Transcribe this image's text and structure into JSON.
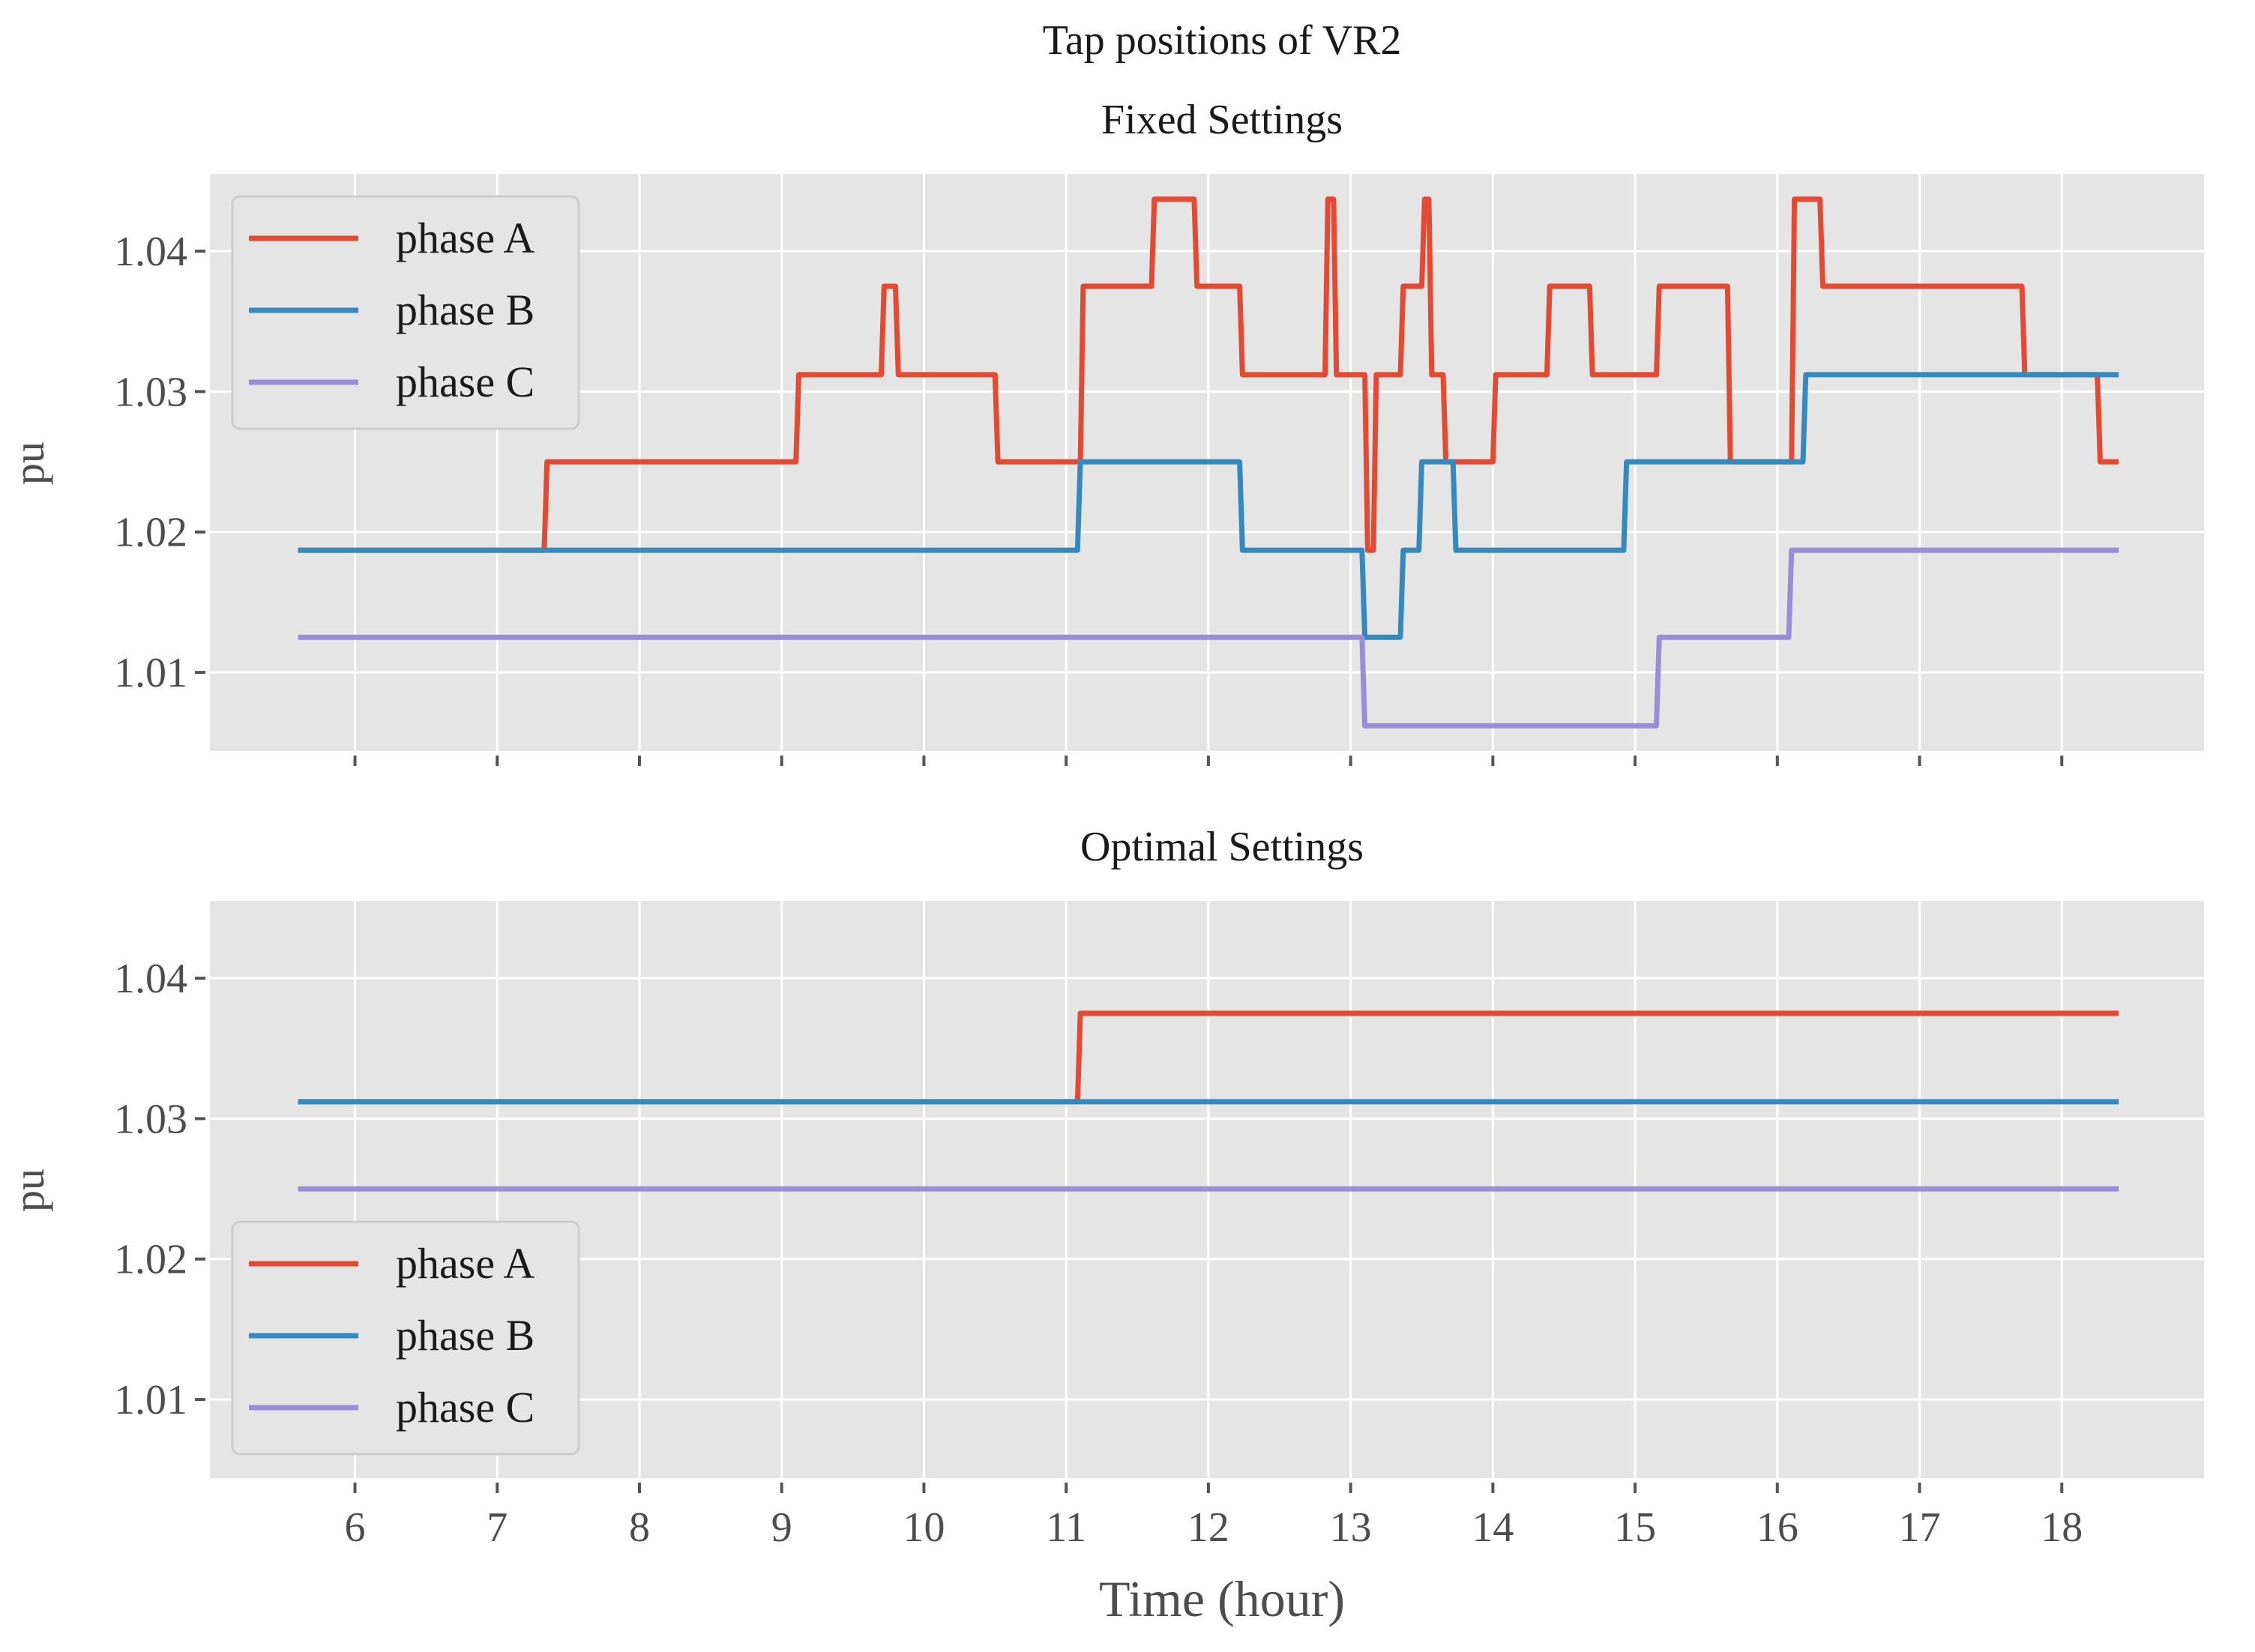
{
  "figure_title": "Tap positions of VR2",
  "xlabel": "Time (hour)",
  "colors": {
    "phase_a": "#e24a33",
    "phase_b": "#348abd",
    "phase_c": "#988ed5",
    "background": "#e5e5e5",
    "grid": "#ffffff",
    "legend_bg": "#e5e5e5",
    "legend_border": "#cccccc",
    "tick": "#555555"
  },
  "chart_data": [
    {
      "type": "line",
      "title": "Fixed Settings",
      "ylabel": "pu",
      "xlim": [
        4.98,
        19.0
      ],
      "ylim": [
        1.0044,
        1.0455
      ],
      "xticks": [
        6,
        7,
        8,
        9,
        10,
        11,
        12,
        13,
        14,
        15,
        16,
        17,
        18
      ],
      "yticks": [
        1.01,
        1.02,
        1.03,
        1.04
      ],
      "ytick_labels": [
        "1.01",
        "1.02",
        "1.03",
        "1.04"
      ],
      "show_xtick_labels": false,
      "legend_position": "upper-left",
      "series": [
        {
          "name": "phase A",
          "color_key": "phase_a",
          "x": [
            5.6,
            7.33,
            7.35,
            9.1,
            9.12,
            9.7,
            9.72,
            9.8,
            9.82,
            10.5,
            10.52,
            11.1,
            11.12,
            11.6,
            11.62,
            11.9,
            11.92,
            12.22,
            12.24,
            12.82,
            12.84,
            12.88,
            12.9,
            13.1,
            13.12,
            13.16,
            13.18,
            13.35,
            13.37,
            13.5,
            13.52,
            13.55,
            13.57,
            13.65,
            13.67,
            13.72,
            13.74,
            14.0,
            14.02,
            14.38,
            14.4,
            14.68,
            14.7,
            15.15,
            15.17,
            15.65,
            15.67,
            16.1,
            16.12,
            16.3,
            16.32,
            17.72,
            17.74,
            18.25,
            18.27,
            18.4
          ],
          "y": [
            1.0187,
            1.0187,
            1.025,
            1.025,
            1.0312,
            1.0312,
            1.0375,
            1.0375,
            1.0312,
            1.0312,
            1.025,
            1.025,
            1.0375,
            1.0375,
            1.0437,
            1.0437,
            1.0375,
            1.0375,
            1.0312,
            1.0312,
            1.0437,
            1.0437,
            1.0312,
            1.0312,
            1.0187,
            1.0187,
            1.0312,
            1.0312,
            1.0375,
            1.0375,
            1.0437,
            1.0437,
            1.0312,
            1.0312,
            1.025,
            1.025,
            1.025,
            1.025,
            1.0312,
            1.0312,
            1.0375,
            1.0375,
            1.0312,
            1.0312,
            1.0375,
            1.0375,
            1.025,
            1.025,
            1.0437,
            1.0437,
            1.0375,
            1.0375,
            1.0312,
            1.0312,
            1.025,
            1.025
          ]
        },
        {
          "name": "phase B",
          "color_key": "phase_b",
          "x": [
            5.6,
            11.08,
            11.1,
            12.22,
            12.24,
            13.08,
            13.1,
            13.35,
            13.37,
            13.48,
            13.5,
            13.72,
            13.74,
            14.92,
            14.94,
            16.18,
            16.2,
            18.4
          ],
          "y": [
            1.0187,
            1.0187,
            1.025,
            1.025,
            1.0187,
            1.0187,
            1.0125,
            1.0125,
            1.0187,
            1.0187,
            1.025,
            1.025,
            1.0187,
            1.0187,
            1.025,
            1.025,
            1.0312,
            1.0312
          ]
        },
        {
          "name": "phase C",
          "color_key": "phase_c",
          "x": [
            5.6,
            13.08,
            13.1,
            15.15,
            15.17,
            16.08,
            16.1,
            18.4
          ],
          "y": [
            1.0125,
            1.0125,
            1.0062,
            1.0062,
            1.0125,
            1.0125,
            1.0187,
            1.0187
          ]
        }
      ]
    },
    {
      "type": "line",
      "title": "Optimal Settings",
      "ylabel": "pu",
      "xlabel": "Time (hour)",
      "xlim": [
        4.98,
        19.0
      ],
      "ylim": [
        1.0044,
        1.0455
      ],
      "xticks": [
        6,
        7,
        8,
        9,
        10,
        11,
        12,
        13,
        14,
        15,
        16,
        17,
        18
      ],
      "xtick_labels": [
        "6",
        "7",
        "8",
        "9",
        "10",
        "11",
        "12",
        "13",
        "14",
        "15",
        "16",
        "17",
        "18"
      ],
      "yticks": [
        1.01,
        1.02,
        1.03,
        1.04
      ],
      "ytick_labels": [
        "1.01",
        "1.02",
        "1.03",
        "1.04"
      ],
      "show_xtick_labels": true,
      "legend_position": "lower-left",
      "series": [
        {
          "name": "phase A",
          "color_key": "phase_a",
          "x": [
            5.6,
            11.08,
            11.1,
            18.4
          ],
          "y": [
            1.0312,
            1.0312,
            1.0375,
            1.0375
          ]
        },
        {
          "name": "phase B",
          "color_key": "phase_b",
          "x": [
            5.6,
            18.4
          ],
          "y": [
            1.0312,
            1.0312
          ]
        },
        {
          "name": "phase C",
          "color_key": "phase_c",
          "x": [
            5.6,
            18.4
          ],
          "y": [
            1.025,
            1.025
          ]
        }
      ]
    }
  ]
}
